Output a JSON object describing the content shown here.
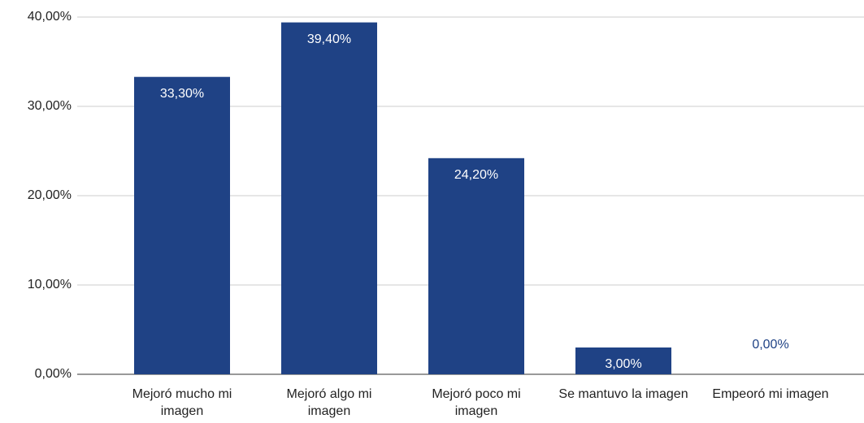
{
  "chart_data": {
    "type": "bar",
    "categories": [
      "Mejoró mucho mi imagen",
      "Mejoró algo mi imagen",
      "Mejoró poco mi imagen",
      "Se mantuvo la imagen",
      "Empeoró mi imagen"
    ],
    "values": [
      33.3,
      39.4,
      24.2,
      3.0,
      0.0
    ],
    "value_labels": [
      "33,30%",
      "39,40%",
      "24,20%",
      "3,00%",
      "0,00%"
    ],
    "color": "#1f4285",
    "ylim": [
      0,
      40
    ],
    "yticks": [
      {
        "value": 0,
        "label": "0,00%"
      },
      {
        "value": 10,
        "label": "10,00%"
      },
      {
        "value": 20,
        "label": "20,00%"
      },
      {
        "value": 30,
        "label": "30,00%"
      },
      {
        "value": 40,
        "label": "40,00%"
      }
    ],
    "grid": true
  }
}
